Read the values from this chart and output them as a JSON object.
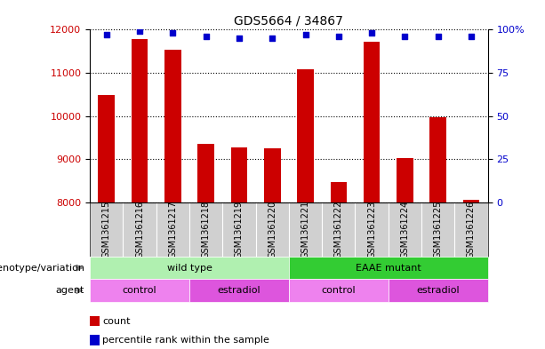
{
  "title": "GDS5664 / 34867",
  "samples": [
    "GSM1361215",
    "GSM1361216",
    "GSM1361217",
    "GSM1361218",
    "GSM1361219",
    "GSM1361220",
    "GSM1361221",
    "GSM1361222",
    "GSM1361223",
    "GSM1361224",
    "GSM1361225",
    "GSM1361226"
  ],
  "counts": [
    10480,
    11780,
    11530,
    9350,
    9280,
    9260,
    11090,
    8480,
    11730,
    9020,
    9980,
    8060
  ],
  "percentiles": [
    97,
    99,
    98,
    96,
    95,
    95,
    97,
    96,
    98,
    96,
    96,
    96
  ],
  "bar_color": "#cc0000",
  "dot_color": "#0000cc",
  "ylim_left": [
    8000,
    12000
  ],
  "ylim_right": [
    0,
    100
  ],
  "yticks_left": [
    8000,
    9000,
    10000,
    11000,
    12000
  ],
  "yticks_right": [
    0,
    25,
    50,
    75,
    100
  ],
  "right_tick_labels": [
    "0",
    "25",
    "50",
    "75",
    "100%"
  ],
  "bar_width": 0.5,
  "background_color": "#ffffff",
  "plot_bg_color": "#ffffff",
  "sample_bg_color": "#d0d0d0",
  "genotype_row": {
    "label": "genotype/variation",
    "groups": [
      {
        "name": "wild type",
        "start": 0,
        "end": 5,
        "color": "#b0f0b0"
      },
      {
        "name": "EAAE mutant",
        "start": 6,
        "end": 11,
        "color": "#33cc33"
      }
    ]
  },
  "agent_row": {
    "label": "agent",
    "groups": [
      {
        "name": "control",
        "start": 0,
        "end": 2,
        "color": "#ee82ee"
      },
      {
        "name": "estradiol",
        "start": 3,
        "end": 5,
        "color": "#dd55dd"
      },
      {
        "name": "control",
        "start": 6,
        "end": 8,
        "color": "#ee82ee"
      },
      {
        "name": "estradiol",
        "start": 9,
        "end": 11,
        "color": "#dd55dd"
      }
    ]
  },
  "legend": [
    {
      "label": "count",
      "color": "#cc0000"
    },
    {
      "label": "percentile rank within the sample",
      "color": "#0000cc"
    }
  ]
}
